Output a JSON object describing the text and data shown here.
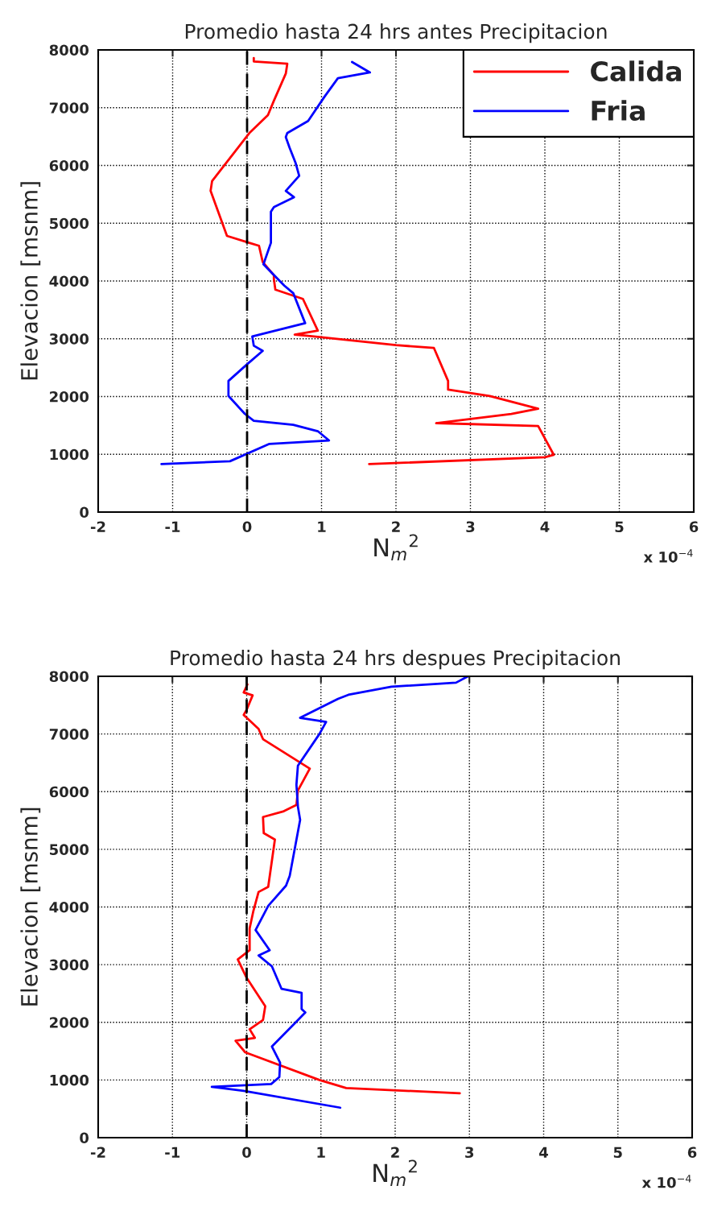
{
  "chart_data": [
    {
      "type": "line",
      "title": "Promedio hasta 24 hrs antes Precipitacion",
      "xlabel": "N$_{m}$$^{2}$",
      "ylabel": "Elevacion [msnm]",
      "annotations": [
        "x 10$^{−4}$"
      ],
      "xlim": [
        -2,
        6
      ],
      "xticks": [
        -2,
        -1,
        0,
        1,
        2,
        3,
        4,
        5,
        6
      ],
      "ylim": [
        0,
        8000
      ],
      "yticks": [
        0,
        1000,
        2000,
        3000,
        4000,
        5000,
        6000,
        7000,
        8000
      ],
      "grid": true,
      "legend": "top right",
      "ref_lines": [
        {
          "axis": "x",
          "value": 0,
          "color": "#000000",
          "line_style": "dashed"
        }
      ],
      "series": [
        {
          "name": "Calida",
          "color": "#ff0000",
          "x": [
            0.09,
            0.09,
            0.54,
            0.52,
            0.36,
            0.28,
            0.03,
            -0.47,
            -0.49,
            -0.27,
            0.03,
            0.16,
            0.21,
            0.36,
            0.36,
            0.38,
            0.75,
            0.95,
            0.64,
            0.82,
            2.0,
            2.51,
            2.7,
            2.7,
            3.26,
            3.91,
            3.55,
            2.54,
            3.91,
            4.12,
            4.0,
            1.64
          ],
          "values": [
            7860,
            7800,
            7760,
            7590,
            7120,
            6870,
            6560,
            5730,
            5560,
            4780,
            4660,
            4610,
            4330,
            4100,
            4030,
            3850,
            3690,
            3140,
            3070,
            3050,
            2890,
            2840,
            2270,
            2120,
            2010,
            1790,
            1700,
            1540,
            1490,
            990,
            950,
            830
          ]
        },
        {
          "name": "Fria",
          "color": "#0000ff",
          "x": [
            1.41,
            1.65,
            1.22,
            1.04,
            0.82,
            0.54,
            0.52,
            0.57,
            0.65,
            0.7,
            0.52,
            0.63,
            0.36,
            0.32,
            0.32,
            0.22,
            0.5,
            0.62,
            0.78,
            0.07,
            0.09,
            0.21,
            0.01,
            -0.25,
            -0.25,
            -0.03,
            0.09,
            0.62,
            0.95,
            1.1,
            0.3,
            -0.23,
            -1.15
          ],
          "values": [
            7790,
            7610,
            7510,
            7190,
            6770,
            6560,
            6490,
            6310,
            6050,
            5820,
            5560,
            5450,
            5280,
            5200,
            4660,
            4290,
            3920,
            3790,
            3270,
            3040,
            2880,
            2790,
            2570,
            2270,
            2010,
            1700,
            1580,
            1510,
            1400,
            1240,
            1180,
            880,
            830
          ]
        }
      ]
    },
    {
      "type": "line",
      "title": "Promedio hasta 24 hrs despues Precipitacion",
      "xlabel": "N$_{m}$$^{2}$",
      "ylabel": "Elevacion [msnm]",
      "annotations": [
        "x 10$^{−4}$"
      ],
      "xlim": [
        -2,
        6
      ],
      "xticks": [
        -2,
        -1,
        0,
        1,
        2,
        3,
        4,
        5,
        6
      ],
      "ylim": [
        0,
        8000
      ],
      "yticks": [
        0,
        1000,
        2000,
        3000,
        4000,
        5000,
        6000,
        7000,
        8000
      ],
      "grid": true,
      "ref_lines": [
        {
          "axis": "x",
          "value": 0,
          "color": "#000000",
          "line_style": "dashed"
        }
      ],
      "series": [
        {
          "color": "#ff0000",
          "x": [
            0.01,
            -0.04,
            0.08,
            0.0,
            -0.04,
            0.16,
            0.22,
            0.85,
            0.69,
            0.67,
            0.5,
            0.22,
            0.23,
            0.38,
            0.29,
            0.16,
            0.09,
            0.04,
            0.04,
            -0.12,
            0.0,
            0.25,
            0.22,
            0.04,
            0.11,
            -0.15,
            -0.02,
            0.98,
            1.34,
            2.87
          ],
          "values": [
            7860,
            7720,
            7670,
            7420,
            7330,
            7090,
            6910,
            6400,
            6020,
            5770,
            5660,
            5560,
            5280,
            5170,
            4350,
            4260,
            3930,
            3630,
            3250,
            3090,
            2770,
            2280,
            2040,
            1880,
            1730,
            1680,
            1480,
            1000,
            860,
            770
          ]
        },
        {
          "color": "#0000ff",
          "x": [
            2.98,
            2.82,
            1.95,
            1.37,
            1.23,
            0.72,
            1.07,
            0.98,
            0.69,
            0.67,
            0.69,
            0.72,
            0.58,
            0.53,
            0.29,
            0.12,
            0.31,
            0.16,
            0.34,
            0.47,
            0.74,
            0.74,
            0.79,
            0.34,
            0.45,
            0.44,
            0.33,
            -0.47,
            -0.04,
            1.26
          ],
          "values": [
            8000,
            7890,
            7820,
            7680,
            7610,
            7280,
            7210,
            7000,
            6450,
            6120,
            5740,
            5510,
            4540,
            4370,
            4020,
            3600,
            3250,
            3160,
            2970,
            2580,
            2510,
            2230,
            2170,
            1580,
            1300,
            1050,
            930,
            880,
            810,
            520
          ]
        }
      ]
    }
  ]
}
